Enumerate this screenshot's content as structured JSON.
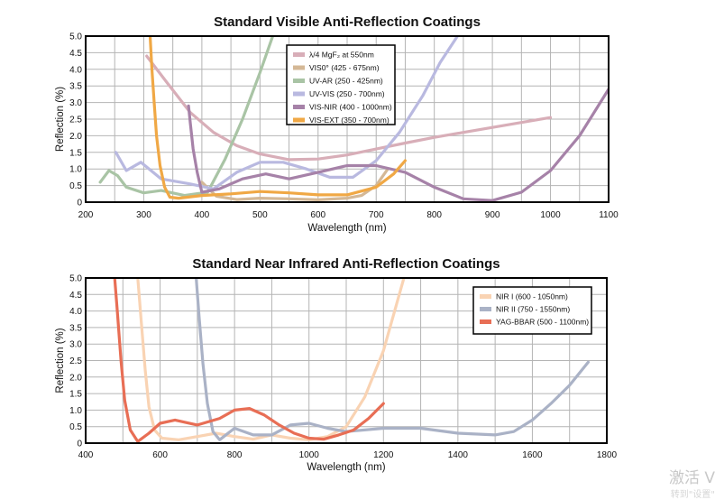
{
  "chart_data": [
    {
      "type": "line",
      "title": "Standard Visible Anti-Reflection Coatings",
      "xlabel": "Wavelength (nm)",
      "ylabel": "Reflection (%)",
      "xlim": [
        200,
        1100
      ],
      "ylim": [
        0,
        5
      ],
      "xticks": [
        "200",
        "300",
        "400",
        "500",
        "600",
        "700",
        "800",
        "900",
        "1000",
        "1100"
      ],
      "yticks": [
        "0",
        "0.5",
        "1.0",
        "1.5",
        "2.0",
        "2.5",
        "3.0",
        "3.5",
        "4.0",
        "4.5",
        "5.0"
      ],
      "grid": true,
      "legend_position": "top-center",
      "series": [
        {
          "name": "λ/4 MgF₂ at 550nm",
          "color": "#d8aeb8",
          "x": [
            305,
            340,
            380,
            420,
            460,
            500,
            550,
            600,
            650,
            700,
            750,
            800,
            850,
            900,
            950,
            1000
          ],
          "y": [
            4.4,
            3.6,
            2.7,
            2.1,
            1.7,
            1.45,
            1.28,
            1.3,
            1.42,
            1.6,
            1.78,
            1.95,
            2.1,
            2.25,
            2.4,
            2.55
          ]
        },
        {
          "name": "VIS0° (425 - 675nm)",
          "color": "#d4b896",
          "x": [
            400,
            425,
            460,
            500,
            550,
            600,
            650,
            675,
            700,
            720
          ],
          "y": [
            0.6,
            0.18,
            0.08,
            0.12,
            0.1,
            0.07,
            0.12,
            0.2,
            0.5,
            1.0
          ]
        },
        {
          "name": "UV-AR (250 - 425nm)",
          "color": "#a9c4a5",
          "x": [
            225,
            240,
            255,
            270,
            300,
            330,
            370,
            410,
            440,
            470,
            500,
            522
          ],
          "y": [
            0.6,
            0.95,
            0.8,
            0.45,
            0.28,
            0.35,
            0.2,
            0.3,
            1.3,
            2.5,
            3.9,
            5.0
          ]
        },
        {
          "name": "UV-VIS (250 - 700nm)",
          "color": "#b9b9e0",
          "x": [
            252,
            270,
            295,
            330,
            380,
            420,
            460,
            500,
            540,
            580,
            620,
            660,
            700,
            740,
            780,
            810,
            840
          ],
          "y": [
            1.5,
            0.95,
            1.2,
            0.7,
            0.55,
            0.4,
            0.9,
            1.2,
            1.2,
            1.0,
            0.75,
            0.75,
            1.25,
            2.1,
            3.2,
            4.2,
            5.0
          ]
        },
        {
          "name": "VIS-NIR (400 - 1000nm)",
          "color": "#a682a8",
          "x": [
            377,
            380,
            385,
            392,
            400,
            430,
            470,
            510,
            550,
            600,
            650,
            700,
            750,
            800,
            850,
            900,
            950,
            1000,
            1050,
            1100
          ],
          "y": [
            2.9,
            2.4,
            1.6,
            0.9,
            0.3,
            0.4,
            0.7,
            0.85,
            0.7,
            0.9,
            1.1,
            1.1,
            0.9,
            0.45,
            0.1,
            0.05,
            0.3,
            0.95,
            2.0,
            3.4
          ]
        },
        {
          "name": "VIS-EXT (350 - 700nm)",
          "color": "#f0a845",
          "x": [
            311,
            314,
            318,
            322,
            328,
            336,
            345,
            360,
            400,
            450,
            500,
            550,
            600,
            650,
            700,
            730,
            750
          ],
          "y": [
            5.0,
            4.0,
            3.0,
            2.0,
            1.1,
            0.45,
            0.15,
            0.12,
            0.2,
            0.25,
            0.32,
            0.28,
            0.22,
            0.22,
            0.45,
            0.85,
            1.25
          ]
        }
      ]
    },
    {
      "type": "line",
      "title": "Standard Near Infrared Anti-Reflection Coatings",
      "xlabel": "Wavelength (nm)",
      "ylabel": "Reflection (%)",
      "xlim": [
        400,
        1800
      ],
      "ylim": [
        0,
        5
      ],
      "xticks": [
        "400",
        "600",
        "800",
        "1000",
        "1200",
        "1400",
        "1600",
        "1800"
      ],
      "yticks": [
        "0",
        "0.5",
        "1.0",
        "1.5",
        "2.0",
        "2.5",
        "3.0",
        "3.5",
        "4.0",
        "4.5",
        "5.0"
      ],
      "grid": true,
      "legend_position": "top-right",
      "series": [
        {
          "name": "NIR I (600 - 1050nm)",
          "color": "#f9d3b3",
          "x": [
            540,
            550,
            560,
            570,
            585,
            605,
            650,
            700,
            750,
            800,
            850,
            900,
            950,
            1000,
            1050,
            1100,
            1150,
            1200,
            1230,
            1255
          ],
          "y": [
            5.0,
            3.6,
            2.2,
            1.1,
            0.4,
            0.15,
            0.1,
            0.2,
            0.3,
            0.2,
            0.12,
            0.25,
            0.15,
            0.1,
            0.2,
            0.5,
            1.4,
            2.8,
            4.0,
            5.0
          ]
        },
        {
          "name": "NIR II (750 - 1550nm)",
          "color": "#aab2c6",
          "x": [
            697,
            705,
            715,
            727,
            742,
            760,
            800,
            850,
            900,
            950,
            1000,
            1050,
            1100,
            1200,
            1300,
            1400,
            1500,
            1550,
            1600,
            1650,
            1700,
            1750
          ],
          "y": [
            5.0,
            3.8,
            2.4,
            1.2,
            0.35,
            0.1,
            0.45,
            0.25,
            0.25,
            0.55,
            0.6,
            0.45,
            0.35,
            0.45,
            0.45,
            0.3,
            0.25,
            0.35,
            0.7,
            1.2,
            1.75,
            2.45
          ]
        },
        {
          "name": "YAG-BBAR (500 - 1100nm)",
          "color": "#e86e55",
          "x": [
            478,
            485,
            495,
            505,
            520,
            540,
            570,
            600,
            640,
            700,
            760,
            800,
            840,
            880,
            920,
            960,
            1000,
            1040,
            1080,
            1120,
            1160,
            1200
          ],
          "y": [
            5.0,
            4.0,
            2.5,
            1.3,
            0.4,
            0.05,
            0.3,
            0.6,
            0.7,
            0.55,
            0.75,
            1.0,
            1.05,
            0.85,
            0.55,
            0.3,
            0.15,
            0.12,
            0.25,
            0.4,
            0.75,
            1.2
          ]
        }
      ]
    }
  ],
  "watermark": {
    "main": "激活 V",
    "sub": "转到\"设置\""
  }
}
